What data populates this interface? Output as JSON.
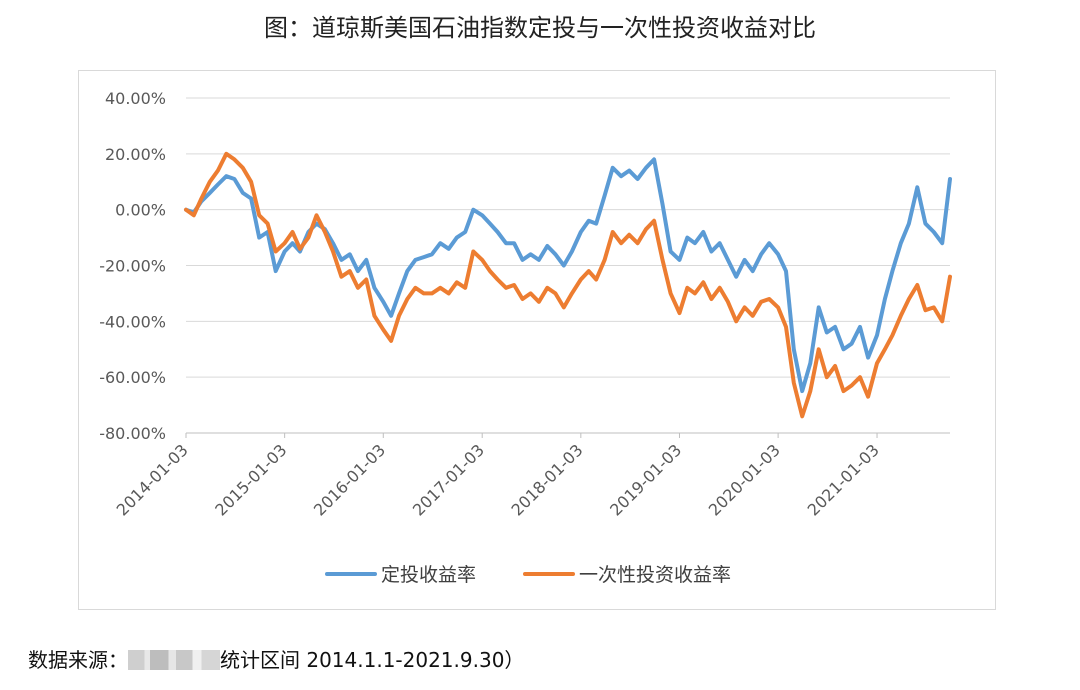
{
  "title": "图：道琼斯美国石油指数定投与一次性投资收益对比",
  "source_prefix": "数据来源：",
  "source_suffix": "统计区间 2014.1.1-2021.9.30）",
  "chart_data": {
    "type": "line",
    "title": "",
    "xlabel": "",
    "ylabel": "",
    "x_ticks": [
      "2014-01-03",
      "2015-01-03",
      "2016-01-03",
      "2017-01-03",
      "2018-01-03",
      "2019-01-03",
      "2020-01-03",
      "2021-01-03"
    ],
    "y_ticks": [
      "40.00%",
      "20.00%",
      "0.00%",
      "-20.00%",
      "-40.00%",
      "-60.00%",
      "-80.00%"
    ],
    "ylim": [
      -80,
      40
    ],
    "xlim": [
      "2014-01-03",
      "2021-09-30"
    ],
    "y_unit": "%",
    "grid": "horizontal",
    "legend": "bottom",
    "colors": {
      "series1": "#5b9bd5",
      "series2": "#ed7d31"
    },
    "series": [
      {
        "name": "定投收益率",
        "color": "#5b9bd5",
        "points": [
          [
            "2014-01-03",
            0
          ],
          [
            "2014-02-01",
            -1
          ],
          [
            "2014-03-01",
            3
          ],
          [
            "2014-04-01",
            6
          ],
          [
            "2014-05-01",
            9
          ],
          [
            "2014-06-01",
            12
          ],
          [
            "2014-07-01",
            11
          ],
          [
            "2014-08-01",
            6
          ],
          [
            "2014-09-01",
            4
          ],
          [
            "2014-10-01",
            -10
          ],
          [
            "2014-11-01",
            -8
          ],
          [
            "2014-12-01",
            -22
          ],
          [
            "2015-01-03",
            -15
          ],
          [
            "2015-02-01",
            -12
          ],
          [
            "2015-03-01",
            -15
          ],
          [
            "2015-04-01",
            -8
          ],
          [
            "2015-05-01",
            -5
          ],
          [
            "2015-06-01",
            -7
          ],
          [
            "2015-07-01",
            -12
          ],
          [
            "2015-08-01",
            -18
          ],
          [
            "2015-09-01",
            -16
          ],
          [
            "2015-10-01",
            -22
          ],
          [
            "2015-11-01",
            -18
          ],
          [
            "2015-12-01",
            -28
          ],
          [
            "2016-01-03",
            -33
          ],
          [
            "2016-02-01",
            -38
          ],
          [
            "2016-03-01",
            -30
          ],
          [
            "2016-04-01",
            -22
          ],
          [
            "2016-05-01",
            -18
          ],
          [
            "2016-06-01",
            -17
          ],
          [
            "2016-07-01",
            -16
          ],
          [
            "2016-08-01",
            -12
          ],
          [
            "2016-09-01",
            -14
          ],
          [
            "2016-10-01",
            -10
          ],
          [
            "2016-11-01",
            -8
          ],
          [
            "2016-12-01",
            0
          ],
          [
            "2017-01-03",
            -2
          ],
          [
            "2017-02-01",
            -5
          ],
          [
            "2017-03-01",
            -8
          ],
          [
            "2017-04-01",
            -12
          ],
          [
            "2017-05-01",
            -12
          ],
          [
            "2017-06-01",
            -18
          ],
          [
            "2017-07-01",
            -16
          ],
          [
            "2017-08-01",
            -18
          ],
          [
            "2017-09-01",
            -13
          ],
          [
            "2017-10-01",
            -16
          ],
          [
            "2017-11-01",
            -20
          ],
          [
            "2017-12-01",
            -15
          ],
          [
            "2018-01-03",
            -8
          ],
          [
            "2018-02-01",
            -4
          ],
          [
            "2018-03-01",
            -5
          ],
          [
            "2018-04-01",
            5
          ],
          [
            "2018-05-01",
            15
          ],
          [
            "2018-06-01",
            12
          ],
          [
            "2018-07-01",
            14
          ],
          [
            "2018-08-01",
            11
          ],
          [
            "2018-09-01",
            15
          ],
          [
            "2018-10-01",
            18
          ],
          [
            "2018-11-01",
            2
          ],
          [
            "2018-12-01",
            -15
          ],
          [
            "2019-01-03",
            -18
          ],
          [
            "2019-02-01",
            -10
          ],
          [
            "2019-03-01",
            -12
          ],
          [
            "2019-04-01",
            -8
          ],
          [
            "2019-05-01",
            -15
          ],
          [
            "2019-06-01",
            -12
          ],
          [
            "2019-07-01",
            -18
          ],
          [
            "2019-08-01",
            -24
          ],
          [
            "2019-09-01",
            -18
          ],
          [
            "2019-10-01",
            -22
          ],
          [
            "2019-11-01",
            -16
          ],
          [
            "2019-12-01",
            -12
          ],
          [
            "2020-01-03",
            -16
          ],
          [
            "2020-02-01",
            -22
          ],
          [
            "2020-03-01",
            -50
          ],
          [
            "2020-04-01",
            -65
          ],
          [
            "2020-05-01",
            -55
          ],
          [
            "2020-06-01",
            -35
          ],
          [
            "2020-07-01",
            -44
          ],
          [
            "2020-08-01",
            -42
          ],
          [
            "2020-09-01",
            -50
          ],
          [
            "2020-10-01",
            -48
          ],
          [
            "2020-11-01",
            -42
          ],
          [
            "2020-12-01",
            -53
          ],
          [
            "2021-01-03",
            -45
          ],
          [
            "2021-02-01",
            -32
          ],
          [
            "2021-03-01",
            -22
          ],
          [
            "2021-04-01",
            -12
          ],
          [
            "2021-05-01",
            -5
          ],
          [
            "2021-06-01",
            8
          ],
          [
            "2021-07-01",
            -5
          ],
          [
            "2021-08-01",
            -8
          ],
          [
            "2021-09-01",
            -12
          ],
          [
            "2021-09-30",
            11
          ]
        ]
      },
      {
        "name": "一次性投资收益率",
        "color": "#ed7d31",
        "points": [
          [
            "2014-01-03",
            0
          ],
          [
            "2014-02-01",
            -2
          ],
          [
            "2014-03-01",
            4
          ],
          [
            "2014-04-01",
            10
          ],
          [
            "2014-05-01",
            14
          ],
          [
            "2014-06-01",
            20
          ],
          [
            "2014-07-01",
            18
          ],
          [
            "2014-08-01",
            15
          ],
          [
            "2014-09-01",
            10
          ],
          [
            "2014-10-01",
            -2
          ],
          [
            "2014-11-01",
            -5
          ],
          [
            "2014-12-01",
            -15
          ],
          [
            "2015-01-03",
            -12
          ],
          [
            "2015-02-01",
            -8
          ],
          [
            "2015-03-01",
            -14
          ],
          [
            "2015-04-01",
            -10
          ],
          [
            "2015-05-01",
            -2
          ],
          [
            "2015-06-01",
            -8
          ],
          [
            "2015-07-01",
            -15
          ],
          [
            "2015-08-01",
            -24
          ],
          [
            "2015-09-01",
            -22
          ],
          [
            "2015-10-01",
            -28
          ],
          [
            "2015-11-01",
            -25
          ],
          [
            "2015-12-01",
            -38
          ],
          [
            "2016-01-03",
            -43
          ],
          [
            "2016-02-01",
            -47
          ],
          [
            "2016-03-01",
            -38
          ],
          [
            "2016-04-01",
            -32
          ],
          [
            "2016-05-01",
            -28
          ],
          [
            "2016-06-01",
            -30
          ],
          [
            "2016-07-01",
            -30
          ],
          [
            "2016-08-01",
            -28
          ],
          [
            "2016-09-01",
            -30
          ],
          [
            "2016-10-01",
            -26
          ],
          [
            "2016-11-01",
            -28
          ],
          [
            "2016-12-01",
            -15
          ],
          [
            "2017-01-03",
            -18
          ],
          [
            "2017-02-01",
            -22
          ],
          [
            "2017-03-01",
            -25
          ],
          [
            "2017-04-01",
            -28
          ],
          [
            "2017-05-01",
            -27
          ],
          [
            "2017-06-01",
            -32
          ],
          [
            "2017-07-01",
            -30
          ],
          [
            "2017-08-01",
            -33
          ],
          [
            "2017-09-01",
            -28
          ],
          [
            "2017-10-01",
            -30
          ],
          [
            "2017-11-01",
            -35
          ],
          [
            "2017-12-01",
            -30
          ],
          [
            "2018-01-03",
            -25
          ],
          [
            "2018-02-01",
            -22
          ],
          [
            "2018-03-01",
            -25
          ],
          [
            "2018-04-01",
            -18
          ],
          [
            "2018-05-01",
            -8
          ],
          [
            "2018-06-01",
            -12
          ],
          [
            "2018-07-01",
            -9
          ],
          [
            "2018-08-01",
            -12
          ],
          [
            "2018-09-01",
            -7
          ],
          [
            "2018-10-01",
            -4
          ],
          [
            "2018-11-01",
            -18
          ],
          [
            "2018-12-01",
            -30
          ],
          [
            "2019-01-03",
            -37
          ],
          [
            "2019-02-01",
            -28
          ],
          [
            "2019-03-01",
            -30
          ],
          [
            "2019-04-01",
            -26
          ],
          [
            "2019-05-01",
            -32
          ],
          [
            "2019-06-01",
            -28
          ],
          [
            "2019-07-01",
            -33
          ],
          [
            "2019-08-01",
            -40
          ],
          [
            "2019-09-01",
            -35
          ],
          [
            "2019-10-01",
            -38
          ],
          [
            "2019-11-01",
            -33
          ],
          [
            "2019-12-01",
            -32
          ],
          [
            "2020-01-03",
            -35
          ],
          [
            "2020-02-01",
            -42
          ],
          [
            "2020-03-01",
            -62
          ],
          [
            "2020-04-01",
            -74
          ],
          [
            "2020-05-01",
            -65
          ],
          [
            "2020-06-01",
            -50
          ],
          [
            "2020-07-01",
            -60
          ],
          [
            "2020-08-01",
            -56
          ],
          [
            "2020-09-01",
            -65
          ],
          [
            "2020-10-01",
            -63
          ],
          [
            "2020-11-01",
            -60
          ],
          [
            "2020-12-01",
            -67
          ],
          [
            "2021-01-03",
            -55
          ],
          [
            "2021-02-01",
            -50
          ],
          [
            "2021-03-01",
            -45
          ],
          [
            "2021-04-01",
            -38
          ],
          [
            "2021-05-01",
            -32
          ],
          [
            "2021-06-01",
            -27
          ],
          [
            "2021-07-01",
            -36
          ],
          [
            "2021-08-01",
            -35
          ],
          [
            "2021-09-01",
            -40
          ],
          [
            "2021-09-30",
            -24
          ]
        ]
      }
    ]
  }
}
